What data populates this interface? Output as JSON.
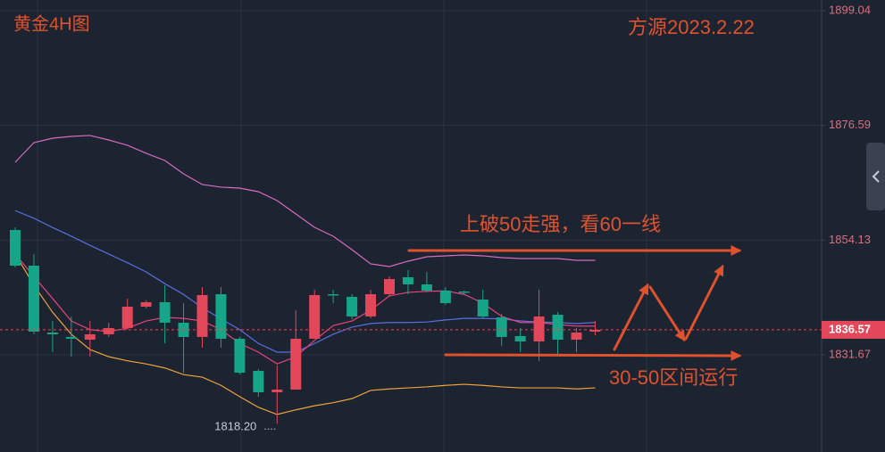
{
  "chart_data": {
    "type": "candlestick",
    "title": "黄金4H图",
    "subtitle": "方源2023.2.22",
    "annotations": [
      {
        "text": "上破50走强，看60一线"
      },
      {
        "text": "30-50区间运行"
      }
    ],
    "up_color": "#e2475a",
    "down_color": "#16a588",
    "open": [
      1856.11,
      1849.13,
      1836.04,
      1835.17,
      1834.64,
      1835.69,
      1836.91,
      1841.1,
      1841.97,
      1837.96,
      1835.17,
      1843.54,
      1834.82,
      1828.53,
      1824.35,
      1824.87,
      1834.82,
      1843.54,
      1843.02,
      1839.18,
      1843.54,
      1846.86,
      1845.46,
      1844.24,
      1844.07,
      1842.5,
      1839.01,
      1835.34,
      1834.29,
      1839.53,
      1834.64,
      1836.21
    ],
    "high": [
      1856.63,
      1851.4,
      1838.31,
      1839.18,
      1838.31,
      1837.96,
      1842.67,
      1842.32,
      1845.29,
      1841.8,
      1844.94,
      1844.94,
      1835.17,
      1828.88,
      1829.58,
      1840.4,
      1844.42,
      1844.42,
      1843.54,
      1844.42,
      1847.03,
      1848.25,
      1847.91,
      1844.94,
      1844.24,
      1844.42,
      1839.7,
      1836.91,
      1844.42,
      1840.05,
      1836.91,
      1838.31
    ],
    "low": [
      1848.78,
      1835.69,
      1832.2,
      1831.33,
      1831.33,
      1835.17,
      1836.56,
      1840.75,
      1833.94,
      1828.18,
      1833.07,
      1833.07,
      1827.84,
      1823.47,
      1818.2,
      1824.87,
      1834.82,
      1841.8,
      1838.66,
      1838.83,
      1843.02,
      1843.54,
      1843.89,
      1841.45,
      1843.54,
      1838.66,
      1833.42,
      1832.2,
      1830.45,
      1831.85,
      1832.2,
      1835.51
    ],
    "close": [
      1849.13,
      1836.21,
      1835.69,
      1834.82,
      1835.69,
      1836.91,
      1841.1,
      1841.97,
      1837.96,
      1835.17,
      1843.37,
      1834.82,
      1828.18,
      1824.35,
      1824.87,
      1834.82,
      1843.37,
      1843.37,
      1839.18,
      1843.54,
      1846.51,
      1845.46,
      1844.24,
      1841.8,
      1843.89,
      1839.18,
      1835.17,
      1834.29,
      1839.18,
      1834.64,
      1836.04,
      1836.57
    ],
    "indicators": [
      {
        "color": "#d96bc0",
        "values": [
          1869.37,
          1873.21,
          1874.08,
          1874.43,
          1874.61,
          1873.73,
          1872.69,
          1871.12,
          1869.72,
          1867.1,
          1865.01,
          1864.49,
          1864.31,
          1863.61,
          1861.87,
          1859.25,
          1856.63,
          1854.89,
          1852.27,
          1849.48,
          1848.95,
          1850.0,
          1850.87,
          1851.05,
          1851.22,
          1851.05,
          1850.7,
          1850.52,
          1850.52,
          1850.52,
          1850.17,
          1850.17
        ]
      },
      {
        "color": "#5a6fe0",
        "values": [
          1859.9,
          1858.4,
          1856.6,
          1854.9,
          1853.1,
          1851.4,
          1849.7,
          1847.9,
          1845.6,
          1843.5,
          1840.9,
          1838.7,
          1836.6,
          1833.9,
          1832.2,
          1832.2,
          1833.9,
          1835.7,
          1837.1,
          1837.8,
          1838.0,
          1838.0,
          1838.1,
          1838.5,
          1838.8,
          1838.8,
          1838.7,
          1838.3,
          1838.1,
          1838.0,
          1837.8,
          1838.0
        ]
      },
      {
        "color": "#f0a23c",
        "values": [
          1851.4,
          1845.3,
          1840.0,
          1835.7,
          1832.7,
          1831.3,
          1830.5,
          1829.9,
          1829.1,
          1827.8,
          1827.3,
          1825.7,
          1823.5,
          1821.4,
          1820.0,
          1820.9,
          1821.7,
          1822.3,
          1823.1,
          1824.7,
          1825.0,
          1825.2,
          1825.4,
          1825.7,
          1825.9,
          1825.7,
          1825.4,
          1825.2,
          1825.2,
          1825.2,
          1825.0,
          1825.2
        ]
      },
      {
        "color": "#e8447a",
        "values": [
          1851.4,
          1847.0,
          1842.7,
          1838.3,
          1836.6,
          1836.2,
          1836.9,
          1838.3,
          1839.0,
          1838.8,
          1838.3,
          1836.6,
          1833.9,
          1832.2,
          1829.9,
          1831.3,
          1834.5,
          1837.4,
          1838.3,
          1840.4,
          1843.2,
          1843.9,
          1844.1,
          1844.2,
          1843.5,
          1841.8,
          1839.2,
          1838.0,
          1838.0,
          1837.6,
          1837.3,
          1837.3
        ]
      }
    ],
    "ylim": [
      1812.65,
      1901.13
    ],
    "yticks": [
      1899.04,
      1876.59,
      1854.13,
      1831.67
    ],
    "tick_color": "#d9707f",
    "grid": true,
    "last_price": 1836.57,
    "low_marker": {
      "value": 1818.2,
      "label": "1818.20"
    }
  }
}
